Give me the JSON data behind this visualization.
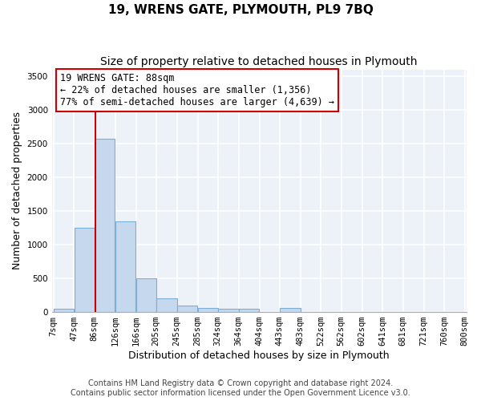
{
  "title": "19, WRENS GATE, PLYMOUTH, PL9 7BQ",
  "subtitle": "Size of property relative to detached houses in Plymouth",
  "xlabel": "Distribution of detached houses by size in Plymouth",
  "ylabel": "Number of detached properties",
  "bin_edges": [
    7,
    47,
    86,
    126,
    166,
    205,
    245,
    285,
    324,
    364,
    404,
    443,
    483,
    522,
    562,
    602,
    641,
    681,
    721,
    760,
    800
  ],
  "bar_heights": [
    50,
    1250,
    2570,
    1340,
    500,
    200,
    100,
    55,
    45,
    45,
    0,
    55,
    0,
    0,
    0,
    0,
    0,
    0,
    0,
    0
  ],
  "bar_color": "#c5d8ee",
  "bar_edgecolor": "#7bafd4",
  "ylim": [
    0,
    3600
  ],
  "yticks": [
    0,
    500,
    1000,
    1500,
    2000,
    2500,
    3000,
    3500
  ],
  "property_size": 88,
  "vline_color": "#cc0000",
  "annotation_text": "19 WRENS GATE: 88sqm\n← 22% of detached houses are smaller (1,356)\n77% of semi-detached houses are larger (4,639) →",
  "annotation_box_color": "#ffffff",
  "annotation_border_color": "#cc0000",
  "footer_line1": "Contains HM Land Registry data © Crown copyright and database right 2024.",
  "footer_line2": "Contains public sector information licensed under the Open Government Licence v3.0.",
  "background_color": "#edf2f9",
  "grid_color": "#ffffff",
  "title_fontsize": 11,
  "subtitle_fontsize": 10,
  "axis_label_fontsize": 9,
  "tick_fontsize": 7.5,
  "annotation_fontsize": 8.5,
  "footer_fontsize": 7
}
